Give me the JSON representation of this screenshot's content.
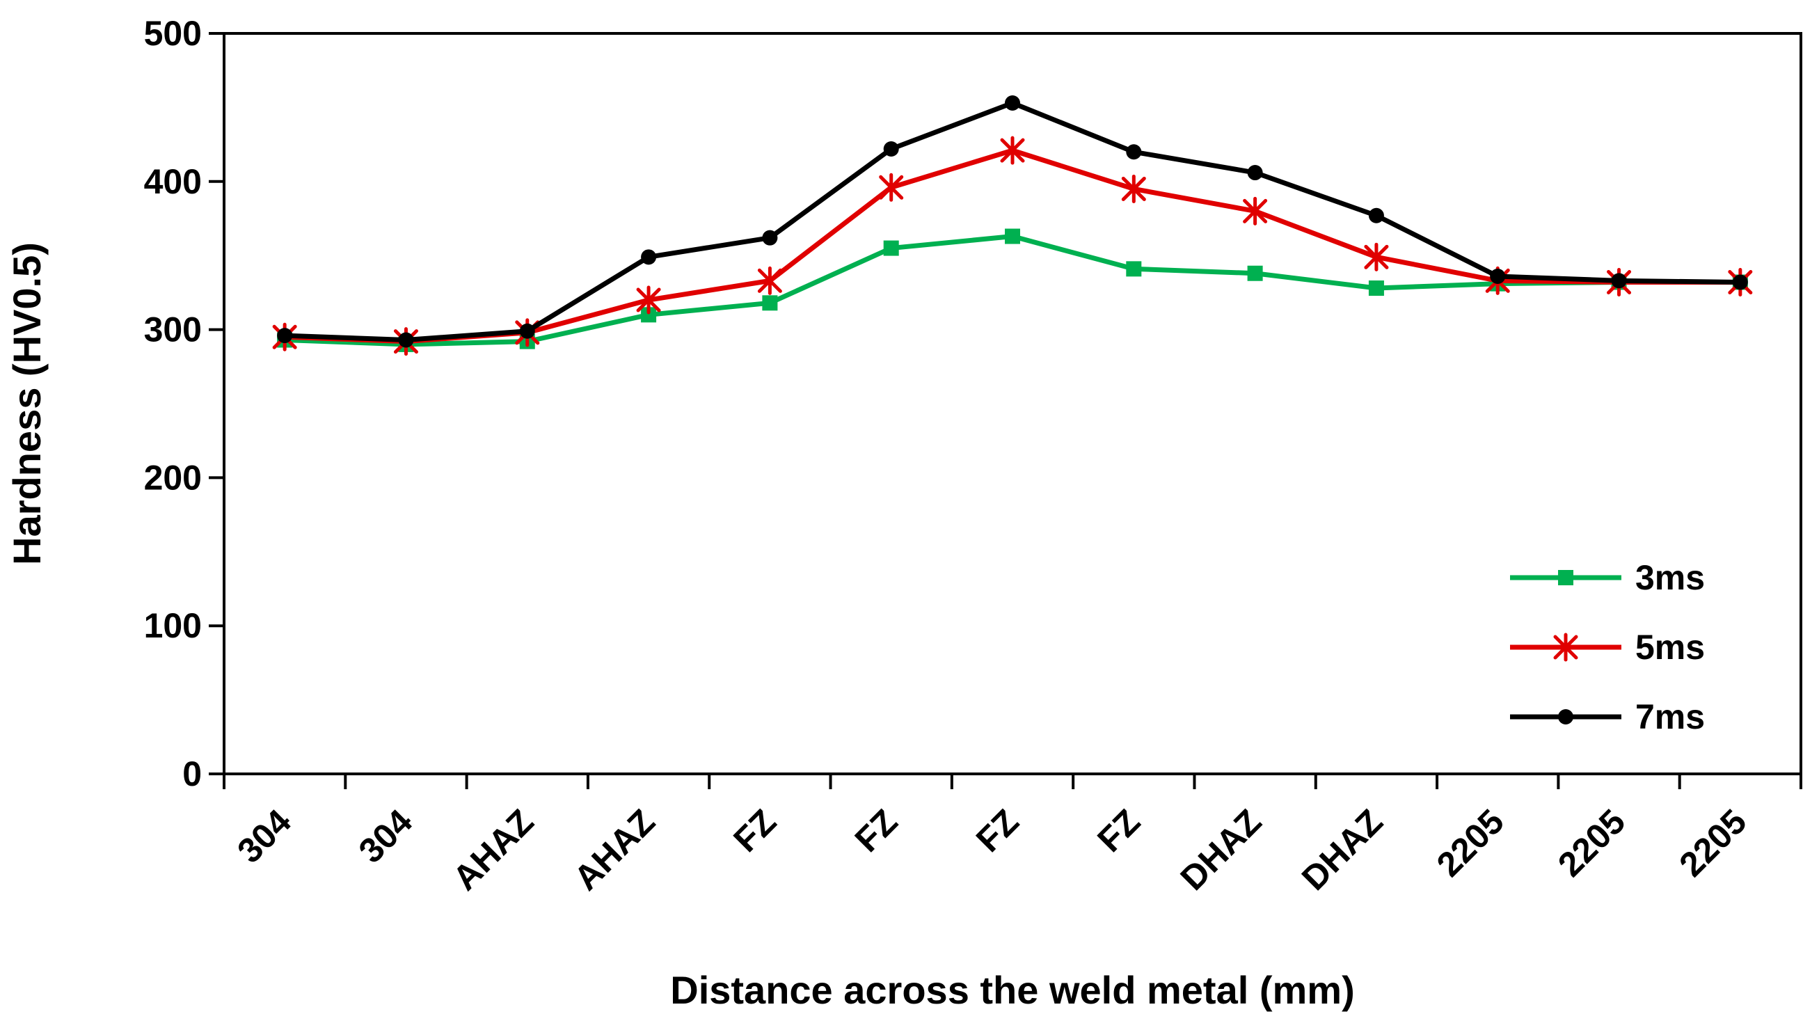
{
  "chart_data": {
    "type": "line",
    "title": "",
    "xlabel": "Distance across the weld metal (mm)",
    "ylabel": "Hardness (HV0.5)",
    "categories": [
      "304",
      "304",
      "AHAZ",
      "AHAZ",
      "FZ",
      "FZ",
      "FZ",
      "FZ",
      "DHAZ",
      "DHAZ",
      "2205",
      "2205",
      "2205"
    ],
    "ylim": [
      0,
      500
    ],
    "yticks": [
      0,
      100,
      200,
      300,
      400,
      500
    ],
    "grid": false,
    "legend_position": "right",
    "series": [
      {
        "name": "3ms",
        "color": "#00b050",
        "marker": "square",
        "values": [
          293,
          290,
          292,
          310,
          318,
          355,
          363,
          341,
          338,
          328,
          331,
          332,
          332
        ]
      },
      {
        "name": "5ms",
        "color": "#e00000",
        "marker": "star",
        "values": [
          295,
          292,
          298,
          320,
          333,
          396,
          421,
          395,
          380,
          349,
          333,
          332,
          332
        ]
      },
      {
        "name": "7ms",
        "color": "#000000",
        "marker": "circle",
        "values": [
          296,
          293,
          299,
          349,
          362,
          422,
          453,
          420,
          406,
          377,
          336,
          333,
          332
        ]
      }
    ]
  }
}
